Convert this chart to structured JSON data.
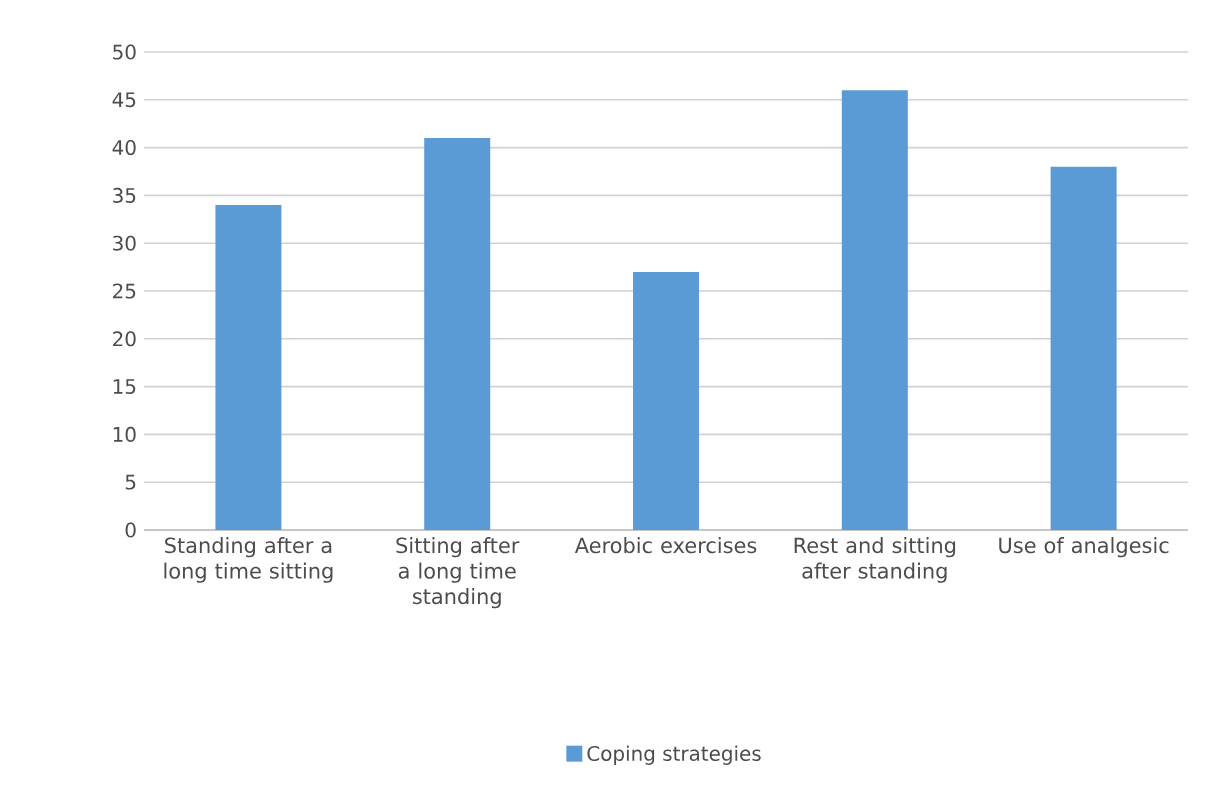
{
  "chart_data": {
    "type": "bar",
    "categories": [
      "Standing after a long time sitting",
      "Sitting after a long time standing",
      "Aerobic exercises",
      "Rest and sitting after standing",
      "Use of analgesic"
    ],
    "series": [
      {
        "name": "Coping strategies",
        "color": "#5b9bd5",
        "values": [
          34,
          41,
          27,
          46,
          38
        ]
      }
    ],
    "ylim": [
      0,
      50
    ],
    "yticks": [
      0,
      5,
      10,
      15,
      20,
      25,
      30,
      35,
      40,
      45,
      50
    ],
    "grid": "y",
    "legend": "bottom"
  }
}
